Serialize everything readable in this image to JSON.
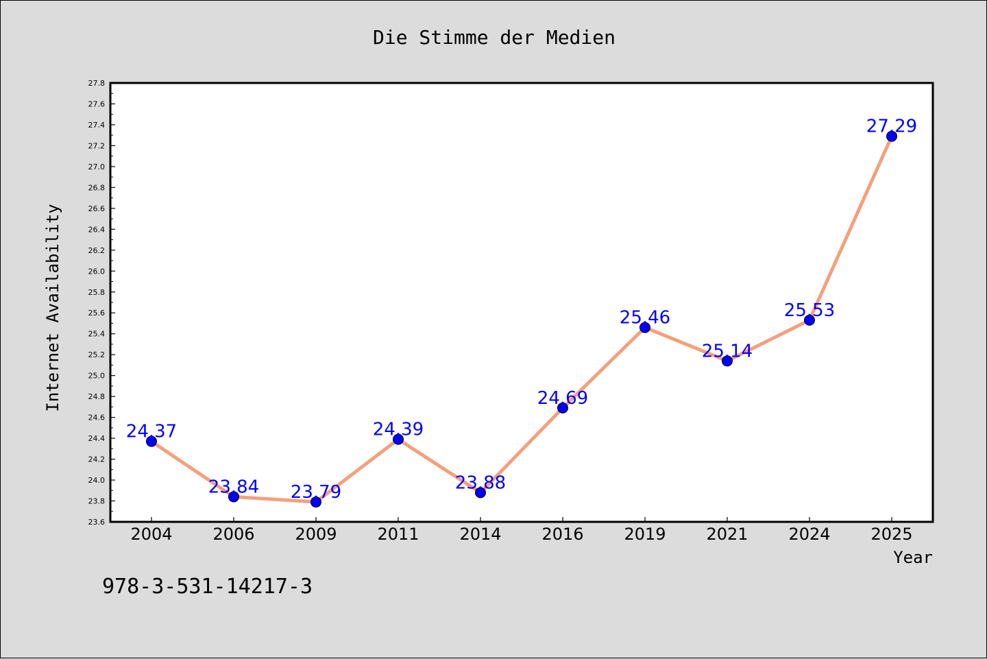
{
  "chart_data": {
    "type": "line",
    "title": "Die Stimme der Medien",
    "xlabel": "Year",
    "ylabel": "Internet Availability",
    "categories": [
      "2004",
      "2006",
      "2009",
      "2011",
      "2014",
      "2016",
      "2019",
      "2021",
      "2024",
      "2025"
    ],
    "series": [
      {
        "values": [
          24.37,
          23.84,
          23.79,
          24.39,
          23.88,
          24.69,
          25.46,
          25.14,
          25.53,
          27.29
        ]
      }
    ],
    "data_labels": [
      "24.37",
      "23.84",
      "23.79",
      "24.39",
      "23.88",
      "24.69",
      "25.46",
      "25.14",
      "25.53",
      "27.29"
    ],
    "ylim": [
      23.6,
      27.8
    ],
    "yticks": [
      "23.6",
      "23.8",
      "24.0",
      "24.2",
      "24.4",
      "24.6",
      "24.8",
      "25.0",
      "25.2",
      "25.4",
      "25.6",
      "25.8",
      "26.0",
      "26.2",
      "26.4",
      "26.6",
      "26.8",
      "27.0",
      "27.2",
      "27.4",
      "27.6",
      "27.8"
    ],
    "grid": false,
    "legend": "none",
    "line_color": "#f4a07c",
    "marker_color": "#0000ff",
    "label_color": "#0000ff"
  },
  "annotation": "978-3-531-14217-3"
}
